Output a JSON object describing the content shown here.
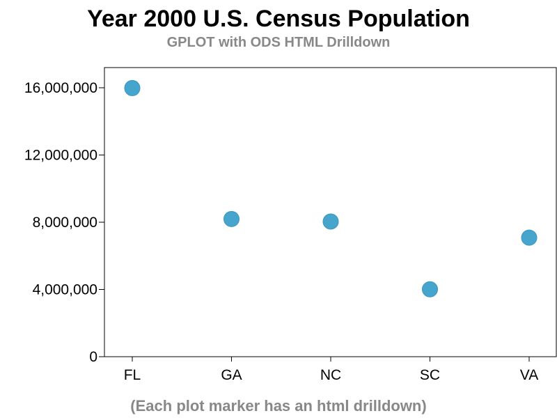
{
  "title": "Year 2000 U.S. Census Population",
  "subtitle": "GPLOT with ODS HTML Drilldown",
  "footnote": "(Each plot marker has an html drilldown)",
  "chart_data": {
    "type": "scatter",
    "title": "Year 2000 U.S. Census Population",
    "subtitle": "GPLOT with ODS HTML Drilldown",
    "xlabel": "",
    "ylabel": "",
    "categories": [
      "FL",
      "GA",
      "NC",
      "SC",
      "VA"
    ],
    "values": [
      15980000,
      8190000,
      8040000,
      4010000,
      7080000
    ],
    "ylim": [
      0,
      17200000
    ],
    "yticks": [
      0,
      4000000,
      8000000,
      12000000,
      16000000
    ],
    "ytick_labels": [
      "0",
      "4,000,000",
      "8,000,000",
      "12,000,000",
      "16,000,000"
    ],
    "grid": false,
    "legend": "none",
    "marker_color": "#45a5cc",
    "axis_color": "#000000"
  }
}
